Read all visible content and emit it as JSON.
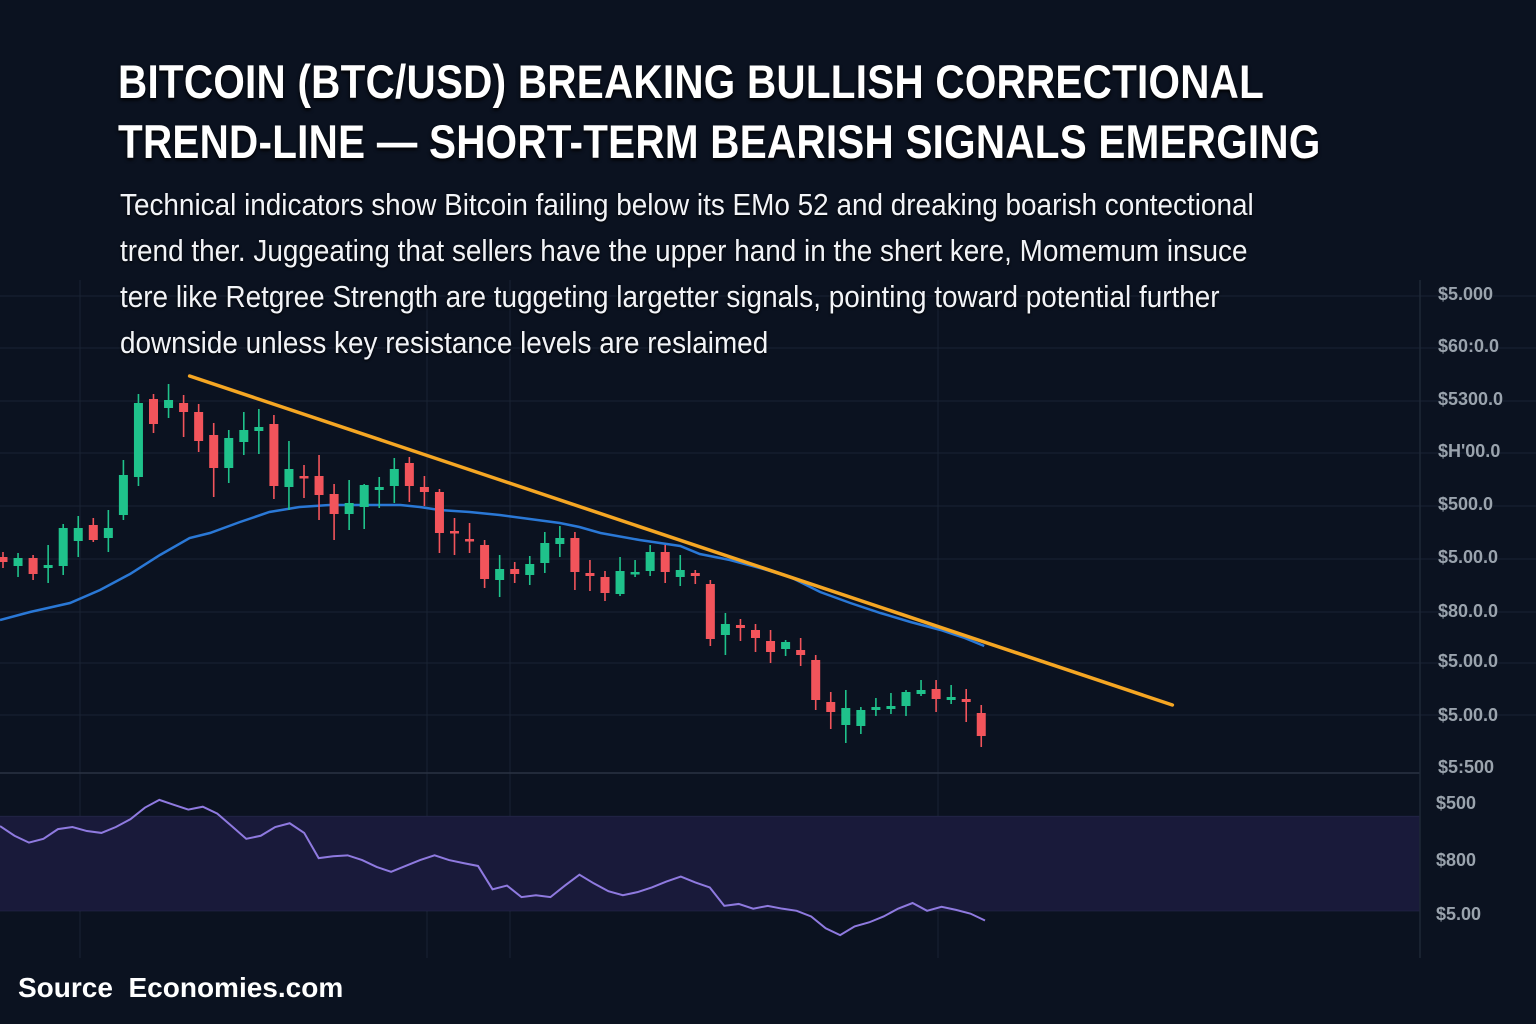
{
  "title": {
    "line1": "BITCOIN (BTC/USD) BREAKING BULLISH CORRECTIONAL",
    "line2": "TREND-LINE — SHORT-TERM BEARISH SIGNALS EMERGING"
  },
  "description": [
    "Technical indicators show Bitcoin failing below its EMo 52 and dreaking boarish contectional",
    "trend ther. Juggeating that sellers have the upper hand in the shert kere, Momemum insuce",
    "tere like Retgree Strength are tuggeting largetter signals, pointing toward potential further",
    "downside unless key resistance levels are reslaimed"
  ],
  "source": "Source  Economies.com",
  "colors": {
    "background": "#0b1220",
    "up": "#1fc28b",
    "down": "#f2545b",
    "ema": "#2a78d6",
    "trendline": "#f5a623",
    "rsi": "#8f7ae0",
    "rsi_band": "#191a3a",
    "grid": "#1a2333",
    "axis_text": "#9aa3ad"
  },
  "chart_data": [
    {
      "type": "candlestick",
      "title": "BTC/USD price",
      "ylim": [
        30,
        530
      ],
      "y_tick_labels": [
        "$5.000",
        "$60:0.0",
        "$5300.0",
        "$H'00.0",
        "$500.0",
        "$5.00.0",
        "$80.0.0",
        "$5.00.0",
        "$5.00.0",
        "$5:500"
      ],
      "candles_ohlc": [
        [
          243,
          238,
          248,
          232
        ],
        [
          234,
          242,
          247,
          223
        ],
        [
          242,
          226,
          245,
          220
        ],
        [
          232,
          235,
          255,
          217
        ],
        [
          234,
          272,
          276,
          225
        ],
        [
          259,
          272,
          284,
          243
        ],
        [
          275,
          260,
          282,
          258
        ],
        [
          262,
          272,
          290,
          248
        ],
        [
          285,
          325,
          340,
          280
        ],
        [
          323,
          397,
          406,
          314
        ],
        [
          401,
          376,
          406,
          367
        ],
        [
          392,
          400,
          416,
          382
        ],
        [
          397,
          388,
          405,
          363
        ],
        [
          388,
          359,
          396,
          348
        ],
        [
          365,
          332,
          377,
          303
        ],
        [
          332,
          362,
          370,
          317
        ],
        [
          358,
          370,
          388,
          345
        ],
        [
          369,
          373,
          391,
          346
        ],
        [
          376,
          314,
          385,
          301
        ],
        [
          313,
          331,
          359,
          290
        ],
        [
          324,
          322,
          335,
          302
        ],
        [
          324,
          305,
          345,
          280
        ],
        [
          306,
          286,
          316,
          260
        ],
        [
          286,
          297,
          320,
          270
        ],
        [
          293,
          315,
          316,
          271
        ],
        [
          310,
          313,
          323,
          292
        ],
        [
          314,
          331,
          342,
          297
        ],
        [
          337,
          314,
          343,
          298
        ],
        [
          313,
          308,
          324,
          294
        ],
        [
          308,
          267,
          311,
          247
        ],
        [
          269,
          268,
          282,
          245
        ],
        [
          261,
          259,
          277,
          247
        ],
        [
          255,
          221,
          260,
          212
        ],
        [
          220,
          231,
          245,
          203
        ],
        [
          231,
          226,
          238,
          217
        ],
        [
          225,
          236,
          244,
          215
        ],
        [
          237,
          257,
          268,
          227
        ],
        [
          256,
          262,
          274,
          243
        ],
        [
          262,
          228,
          268,
          210
        ],
        [
          227,
          224,
          240,
          209
        ],
        [
          223,
          207,
          229,
          199
        ],
        [
          206,
          229,
          243,
          204
        ],
        [
          227,
          228,
          240,
          223
        ],
        [
          229,
          248,
          255,
          224
        ],
        [
          248,
          228,
          255,
          217
        ],
        [
          223,
          230,
          245,
          214
        ],
        [
          227,
          224,
          230,
          216
        ],
        [
          216,
          161,
          220,
          154
        ],
        [
          165,
          176,
          187,
          145
        ],
        [
          175,
          172,
          181,
          159
        ],
        [
          170,
          162,
          176,
          148
        ],
        [
          159,
          148,
          170,
          137
        ],
        [
          151,
          158,
          160,
          144
        ],
        [
          150,
          145,
          162,
          134
        ],
        [
          140,
          100,
          145,
          90
        ],
        [
          98,
          88,
          108,
          71
        ],
        [
          75,
          92,
          110,
          57
        ],
        [
          74,
          90,
          93,
          66
        ],
        [
          90,
          93,
          102,
          84
        ],
        [
          91,
          94,
          107,
          86
        ],
        [
          94,
          108,
          110,
          84
        ],
        [
          106,
          110,
          120,
          104
        ],
        [
          111,
          101,
          120,
          88
        ],
        [
          100,
          103,
          115,
          96
        ],
        [
          101,
          98,
          111,
          78
        ],
        [
          87,
          64,
          95,
          53
        ]
      ],
      "ema": {
        "name": "EMA 52",
        "points": [
          [
            -0.2,
            180
          ],
          [
            1.8,
            188
          ],
          [
            4.45,
            197
          ],
          [
            6.45,
            210
          ],
          [
            8.44,
            226
          ],
          [
            10.43,
            245
          ],
          [
            12.4,
            262
          ],
          [
            13.75,
            267
          ],
          [
            15.75,
            278
          ],
          [
            17.7,
            288
          ],
          [
            19.7,
            293
          ],
          [
            21.7,
            295
          ],
          [
            23.7,
            295
          ],
          [
            26.4,
            295
          ],
          [
            27.7,
            293
          ],
          [
            29,
            290
          ],
          [
            31,
            288
          ],
          [
            33,
            285
          ],
          [
            35,
            281
          ],
          [
            37,
            277
          ],
          [
            38.3,
            273
          ],
          [
            39.7,
            267
          ],
          [
            42.3,
            260
          ],
          [
            45,
            254
          ],
          [
            46.3,
            246
          ],
          [
            48.3,
            240
          ],
          [
            50.3,
            232
          ],
          [
            52.3,
            223
          ],
          [
            54.3,
            208
          ],
          [
            56.3,
            197
          ],
          [
            58.3,
            187
          ],
          [
            60.3,
            178
          ],
          [
            62.3,
            170
          ],
          [
            63.9,
            162
          ],
          [
            65.2,
            154
          ]
        ]
      },
      "trendline": {
        "name": "Bullish correctional trend-line",
        "points": [
          [
            12.4,
            424
          ],
          [
            77.7,
            95
          ]
        ]
      }
    },
    {
      "type": "line",
      "title": "Relative Strength",
      "ylim": [
        10,
        85
      ],
      "band": [
        30,
        70
      ],
      "y_tick_labels": [
        "$500",
        "$800",
        "$5.00"
      ],
      "values": [
        65.9,
        61.8,
        58.9,
        60.5,
        64.6,
        65.5,
        63.8,
        63,
        65.5,
        68.8,
        73.7,
        77,
        74.9,
        72.9,
        74.1,
        71.2,
        65.9,
        60.5,
        61.8,
        65.5,
        67.1,
        63,
        52.3,
        53.1,
        53.5,
        51.5,
        48.6,
        46.5,
        49,
        51.5,
        53.5,
        51.5,
        50.2,
        49,
        39.1,
        40.7,
        35.8,
        36.6,
        35.8,
        40.7,
        45.3,
        41.6,
        38.3,
        36.6,
        37.9,
        39.9,
        42.4,
        44.5,
        42,
        39.9,
        32.1,
        32.9,
        30.9,
        32.1,
        30.9,
        30,
        27.6,
        22.6,
        19.7,
        23.4,
        25.1,
        27.6,
        30.9,
        33.3,
        30,
        31.7,
        30.4,
        28.8,
        25.9
      ]
    }
  ]
}
